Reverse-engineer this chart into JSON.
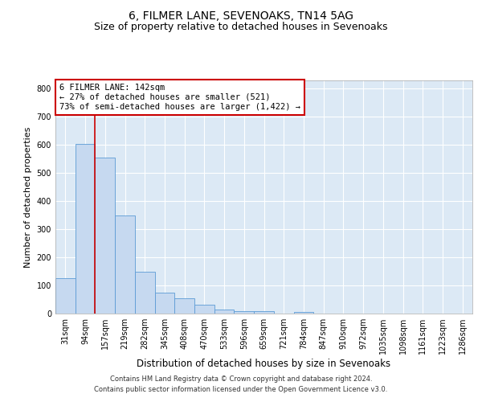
{
  "title": "6, FILMER LANE, SEVENOAKS, TN14 5AG",
  "subtitle": "Size of property relative to detached houses in Sevenoaks",
  "xlabel": "Distribution of detached houses by size in Sevenoaks",
  "ylabel": "Number of detached properties",
  "bar_color": "#c6d9f0",
  "bar_edge_color": "#5b9bd5",
  "background_color": "#dce9f5",
  "grid_color": "#ffffff",
  "categories": [
    "31sqm",
    "94sqm",
    "157sqm",
    "219sqm",
    "282sqm",
    "345sqm",
    "408sqm",
    "470sqm",
    "533sqm",
    "596sqm",
    "659sqm",
    "721sqm",
    "784sqm",
    "847sqm",
    "910sqm",
    "972sqm",
    "1035sqm",
    "1098sqm",
    "1161sqm",
    "1223sqm",
    "1286sqm"
  ],
  "values": [
    125,
    605,
    555,
    348,
    148,
    75,
    53,
    32,
    15,
    10,
    10,
    0,
    7,
    0,
    0,
    0,
    0,
    0,
    0,
    0,
    0
  ],
  "property_line_color": "#cc0000",
  "property_line_x": 1.5,
  "annotation_text": "6 FILMER LANE: 142sqm\n← 27% of detached houses are smaller (521)\n73% of semi-detached houses are larger (1,422) →",
  "annotation_box_color": "#cc0000",
  "ylim": [
    0,
    830
  ],
  "yticks": [
    0,
    100,
    200,
    300,
    400,
    500,
    600,
    700,
    800
  ],
  "footer": "Contains HM Land Registry data © Crown copyright and database right 2024.\nContains public sector information licensed under the Open Government Licence v3.0.",
  "title_fontsize": 10,
  "subtitle_fontsize": 9,
  "tick_fontsize": 7,
  "ylabel_fontsize": 8,
  "xlabel_fontsize": 8.5,
  "annotation_fontsize": 7.5,
  "footer_fontsize": 6
}
